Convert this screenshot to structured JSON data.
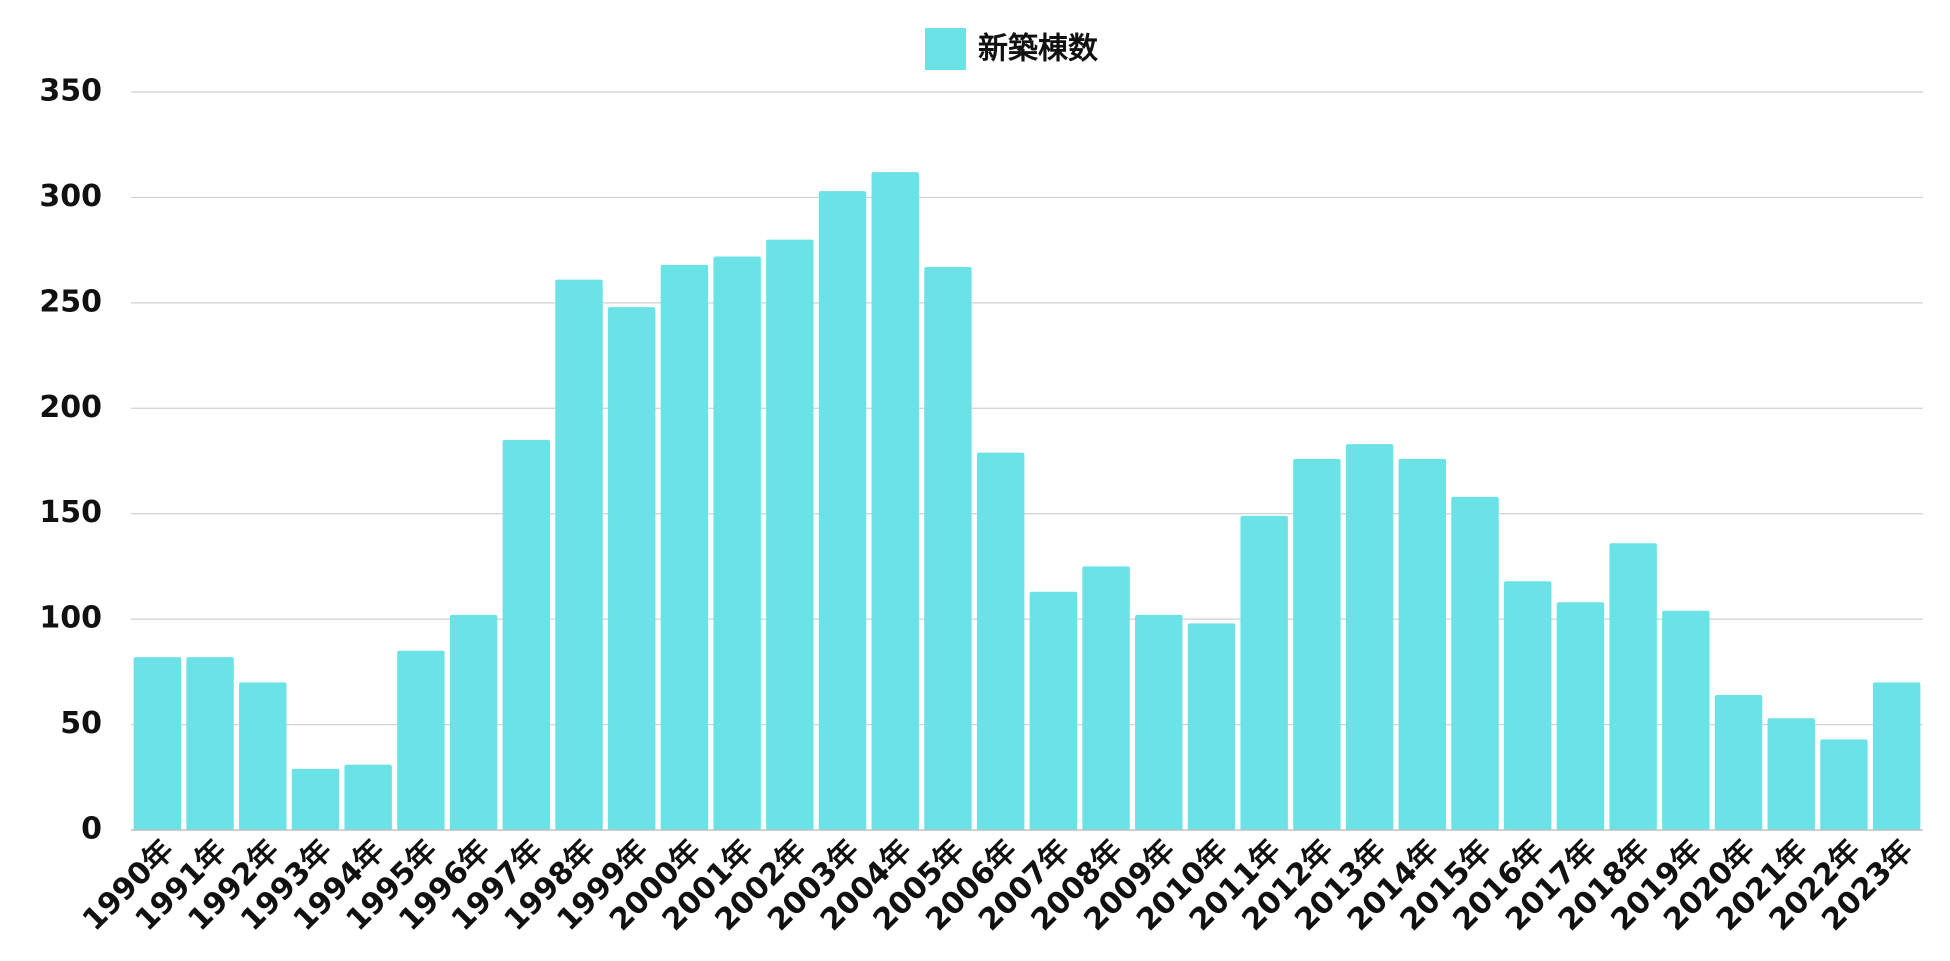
{
  "chart_data": {
    "type": "bar",
    "categories": [
      "1990年",
      "1991年",
      "1992年",
      "1993年",
      "1994年",
      "1995年",
      "1996年",
      "1997年",
      "1998年",
      "1999年",
      "2000年",
      "2001年",
      "2002年",
      "2003年",
      "2004年",
      "2005年",
      "2006年",
      "2007年",
      "2008年",
      "2009年",
      "2010年",
      "2011年",
      "2012年",
      "2013年",
      "2014年",
      "2015年",
      "2016年",
      "2017年",
      "2018年",
      "2019年",
      "2020年",
      "2021年",
      "2022年",
      "2023年"
    ],
    "series": [
      {
        "name": "新築棟数",
        "color": "#6be3e6",
        "values": [
          82,
          82,
          70,
          29,
          31,
          85,
          102,
          185,
          261,
          248,
          268,
          272,
          280,
          303,
          312,
          267,
          179,
          113,
          125,
          102,
          98,
          149,
          176,
          183,
          176,
          158,
          118,
          108,
          136,
          104,
          64,
          53,
          43,
          70
        ]
      }
    ],
    "ylim": [
      0,
      350
    ],
    "yticks": [
      0,
      50,
      100,
      150,
      200,
      250,
      300,
      350
    ],
    "grid": true,
    "legend": "top"
  }
}
